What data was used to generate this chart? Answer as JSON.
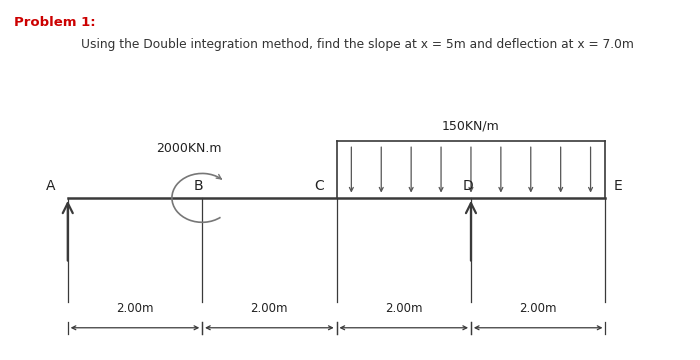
{
  "title_line1": "Problem 1:",
  "title_line2": "Using the Double integration method, find the slope at x = 5m and deflection at x = 7.0m",
  "beam_label_A": "A",
  "beam_label_B": "B",
  "beam_label_C": "C",
  "beam_label_D": "D",
  "beam_label_E": "E",
  "moment_label": "2000KN.m",
  "distributed_load_label": "150KN/m",
  "dimension_label": "2.00m",
  "beam_color": "#3a3a3a",
  "title_color": "#cc0000",
  "subtitle_color": "#333333",
  "bg_color": "#ffffff",
  "beam_y": 0.0,
  "beam_x_start": 0.0,
  "beam_x_end": 8.0,
  "support_A_x": 0.0,
  "support_D_x": 6.0,
  "point_B_x": 2.0,
  "point_C_x": 4.0,
  "point_D_x": 6.0,
  "dist_load_x_start": 4.0,
  "dist_load_x_end": 8.0,
  "dist_load_n_arrows": 9,
  "dim_segments": [
    0.0,
    2.0,
    4.0,
    6.0,
    8.0
  ],
  "xlim": [
    -0.8,
    9.2
  ],
  "ylim": [
    -2.6,
    3.2
  ]
}
